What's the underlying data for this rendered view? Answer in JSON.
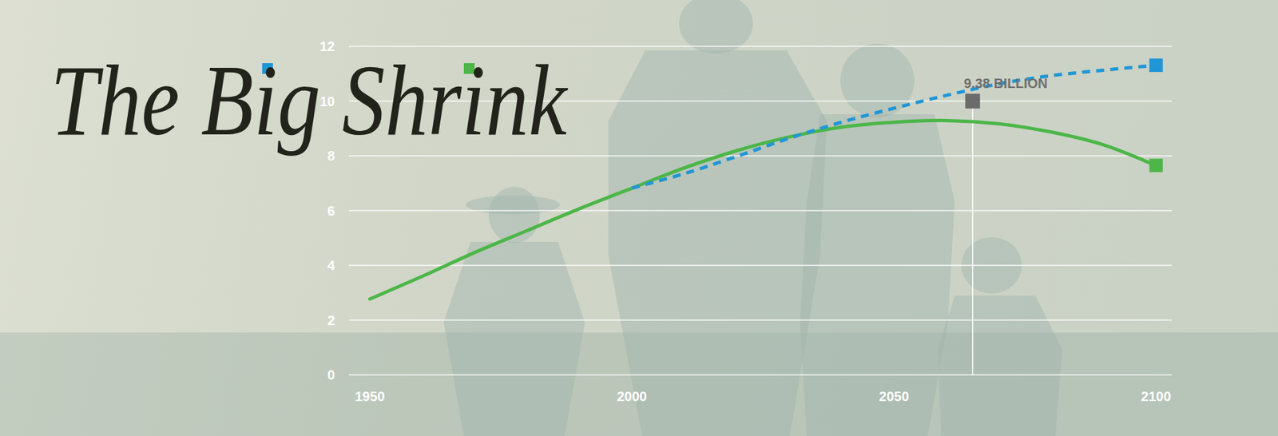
{
  "chart_data": {
    "type": "line",
    "title": "The Big Shrink",
    "xlim": [
      1946,
      2103
    ],
    "xticks": [
      1950,
      2000,
      2050,
      2100
    ],
    "ylim": [
      0,
      12
    ],
    "yticks": [
      0,
      2,
      4,
      6,
      8,
      10,
      12
    ],
    "grid": true,
    "legend": "top-left",
    "series": [
      {
        "color": "#4cb648",
        "line_style": "solid",
        "marker": "square",
        "x": [
          1950,
          1960,
          1970,
          1980,
          1990,
          2000,
          2010,
          2020,
          2030,
          2040,
          2050,
          2060,
          2070,
          2080,
          2090,
          2100
        ],
        "values": [
          2.77,
          3.6,
          4.47,
          5.27,
          6.07,
          6.82,
          7.56,
          8.19,
          8.69,
          9.05,
          9.23,
          9.29,
          9.17,
          8.87,
          8.4,
          7.65
        ]
      },
      {
        "color": "#2196d6",
        "line_style": "dashed",
        "marker": "square",
        "x": [
          2000,
          2010,
          2020,
          2030,
          2040,
          2050,
          2060,
          2070,
          2080,
          2090,
          2100
        ],
        "values": [
          6.82,
          7.35,
          7.98,
          8.64,
          9.23,
          9.74,
          10.21,
          10.63,
          10.93,
          11.13,
          11.31
        ]
      }
    ],
    "annotations": [
      {
        "x": 2065,
        "y": 10,
        "text": "9.38 BILLION"
      }
    ]
  }
}
